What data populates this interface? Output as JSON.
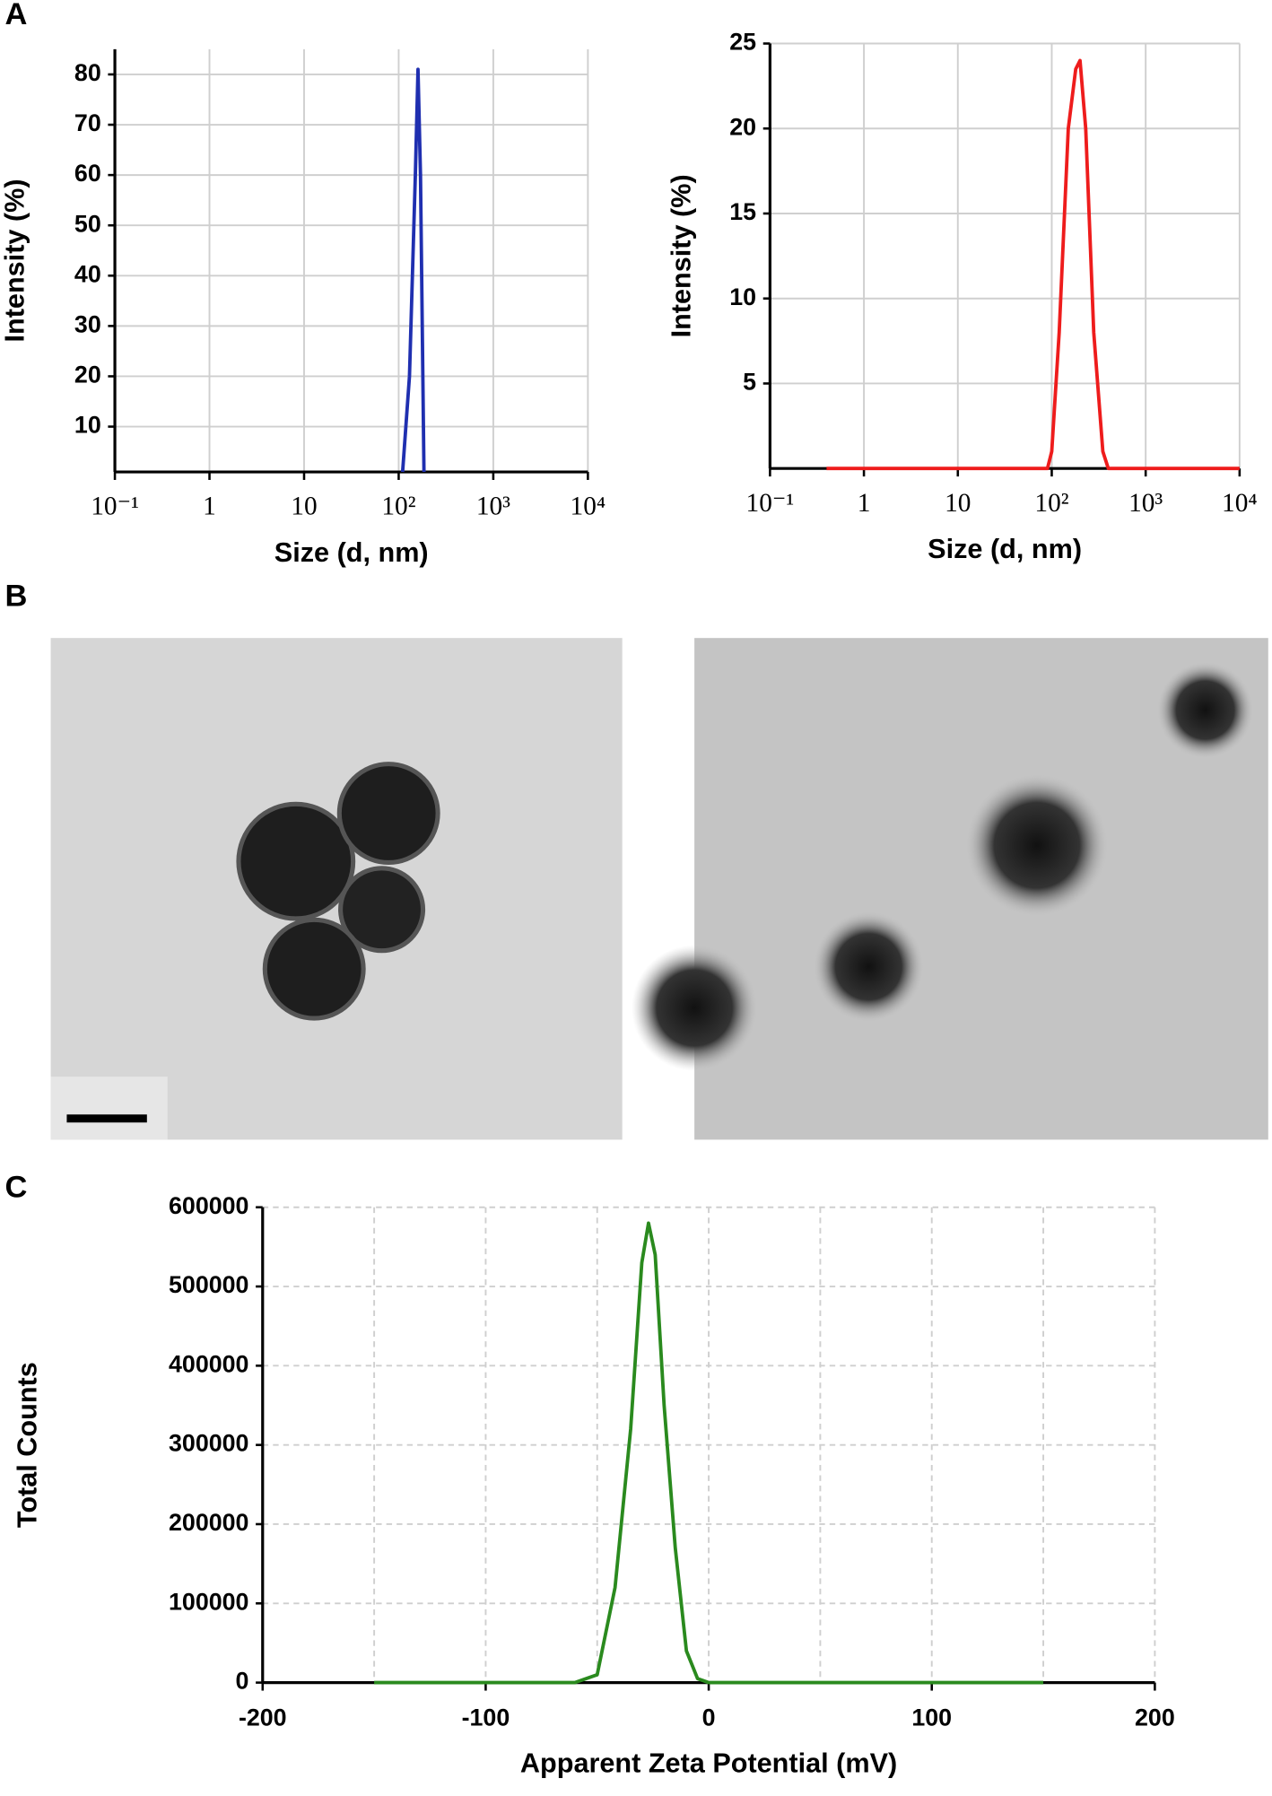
{
  "panels": [
    "A",
    "B",
    "C"
  ],
  "chart_data": [
    {
      "type": "line",
      "xscale": "log",
      "xlabel": "Size (d, nm)",
      "ylabel": "Intensity (%)",
      "xlim": [
        0.1,
        10000
      ],
      "xticks": [
        {
          "value": 0.1,
          "label": "10⁻¹"
        },
        1,
        10,
        {
          "value": 100,
          "label": "10²"
        },
        {
          "value": 1000,
          "label": "10³"
        },
        {
          "value": 10000,
          "label": "10⁴"
        }
      ],
      "ylim": [
        1,
        85
      ],
      "yticks": [
        10,
        20,
        30,
        40,
        50,
        60,
        70,
        80
      ],
      "grid": "solid",
      "color": "#1f2fb0",
      "x": [
        110,
        130,
        150,
        160,
        170,
        185
      ],
      "values": [
        1,
        20,
        60,
        81,
        60,
        1
      ]
    },
    {
      "type": "line",
      "xscale": "log",
      "xlabel": "Size (d, nm)",
      "ylabel": "Intensity (%)",
      "xlim": [
        0.1,
        10000
      ],
      "xticks": [
        {
          "value": 0.1,
          "label": "10⁻¹"
        },
        1,
        10,
        {
          "value": 100,
          "label": "10²"
        },
        {
          "value": 1000,
          "label": "10³"
        },
        {
          "value": 10000,
          "label": "10⁴"
        }
      ],
      "ylim": [
        0,
        25
      ],
      "yticks": [
        5,
        10,
        15,
        20,
        25
      ],
      "grid": "solid",
      "color": "#ee1c1c",
      "x": [
        0.4,
        90,
        100,
        120,
        150,
        180,
        200,
        230,
        280,
        350,
        400,
        10000
      ],
      "values": [
        0,
        0,
        1,
        8,
        20,
        23.5,
        24,
        20,
        8,
        1,
        0,
        0
      ]
    },
    {
      "type": "line",
      "xscale": "linear",
      "xlabel": "Apparent Zeta Potential (mV)",
      "ylabel": "Total Counts",
      "xlim": [
        -200,
        200
      ],
      "xticks": [
        -200,
        -100,
        0,
        100,
        200
      ],
      "xminor": [
        -150,
        -50,
        50,
        150
      ],
      "ylim": [
        0,
        600000
      ],
      "yticks": [
        0,
        100000,
        200000,
        300000,
        400000,
        500000,
        600000
      ],
      "grid": "dashed",
      "color": "#2a8a1e",
      "x": [
        -150,
        -60,
        -50,
        -42,
        -35,
        -30,
        -27,
        -24,
        -20,
        -15,
        -10,
        -5,
        0,
        150
      ],
      "values": [
        0,
        0,
        10000,
        120000,
        320000,
        530000,
        580000,
        540000,
        350000,
        170000,
        40000,
        5000,
        0,
        0
      ]
    }
  ]
}
